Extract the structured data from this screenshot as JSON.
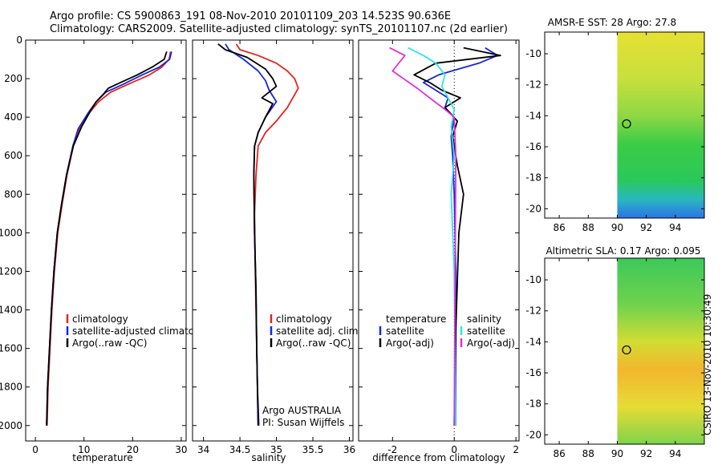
{
  "header": {
    "line1": "Argo profile: CS 5900863_191 08-Nov-2010 20101109_203 14.523S 90.636E",
    "line2": "Climatology: CARS2009. Satellite-adjusted climatology: synTS_20101107.nc (2d earlier)"
  },
  "credit": "CSIRO 13-Nov-2010 10:30:49",
  "colors": {
    "red": "#e8221d",
    "blue": "#1726e0",
    "black": "#000000",
    "cyan": "#2ee6e6",
    "magenta": "#e030d8"
  },
  "chart_data": [
    {
      "type": "line",
      "xlabel": "temperature",
      "ylabel": "",
      "xlim": [
        -2,
        31
      ],
      "ylim": [
        2080,
        0
      ],
      "xticks": [
        0,
        10,
        20,
        30
      ],
      "yticks": [
        0,
        200,
        400,
        600,
        800,
        1000,
        1200,
        1400,
        1600,
        1800,
        2000
      ],
      "legend": [
        "climatology",
        "satellite-adjusted climatology",
        "Argo(..raw -QC)"
      ],
      "series": [
        {
          "name": "climatology",
          "color": "red",
          "x": [
            27.8,
            27.5,
            26.0,
            23.5,
            19.0,
            15.5,
            13.0,
            11.0,
            9.0,
            7.8,
            6.5,
            5.5,
            4.6,
            3.9,
            3.4,
            3.0,
            2.6,
            2.4
          ],
          "y": [
            60,
            100,
            140,
            180,
            230,
            270,
            320,
            380,
            460,
            550,
            700,
            850,
            1000,
            1200,
            1400,
            1600,
            1800,
            2000
          ]
        },
        {
          "name": "satellite-adjusted climatology",
          "color": "blue",
          "x": [
            28.0,
            27.6,
            25.5,
            22.0,
            18.0,
            14.5,
            12.5,
            10.8,
            8.8,
            7.7,
            6.4,
            5.4,
            4.5,
            3.8,
            3.3,
            2.9,
            2.5,
            2.3
          ],
          "y": [
            60,
            100,
            140,
            180,
            230,
            270,
            320,
            380,
            460,
            550,
            700,
            850,
            1000,
            1200,
            1400,
            1600,
            1800,
            2000
          ]
        },
        {
          "name": "Argo(..raw -QC)",
          "color": "black",
          "x": [
            27.0,
            26.5,
            24.0,
            21.0,
            17.5,
            15.0,
            14.0,
            12.5,
            11.5,
            9.5,
            7.8,
            6.4,
            5.4,
            4.5,
            3.8,
            3.3,
            2.9,
            2.5,
            2.3
          ],
          "y": [
            60,
            100,
            140,
            180,
            220,
            250,
            280,
            320,
            360,
            450,
            550,
            700,
            850,
            1000,
            1200,
            1400,
            1600,
            1800,
            2000
          ]
        }
      ],
      "annotations": []
    },
    {
      "type": "line",
      "xlabel": "salinity",
      "ylabel": "",
      "xlim": [
        33.85,
        36.05
      ],
      "ylim": [
        2080,
        0
      ],
      "xticks": [
        34,
        34.5,
        35,
        35.5,
        36
      ],
      "yticks": [],
      "legend": [
        "climatology",
        "satellite adj. clim.",
        "Argo(..raw -QC)"
      ],
      "series": [
        {
          "name": "climatology",
          "color": "red",
          "x": [
            34.45,
            34.5,
            34.75,
            35.0,
            35.15,
            35.25,
            35.3,
            35.15,
            35.0,
            34.85,
            34.75,
            34.72,
            34.7,
            34.71,
            34.72,
            34.73,
            34.74,
            34.75
          ],
          "y": [
            20,
            50,
            80,
            120,
            160,
            200,
            250,
            350,
            420,
            480,
            550,
            700,
            900,
            1200,
            1400,
            1600,
            1800,
            2000
          ]
        },
        {
          "name": "satellite adj. clim.",
          "color": "blue",
          "x": [
            34.3,
            34.35,
            34.55,
            34.75,
            34.85,
            34.9,
            35.0,
            34.85,
            34.75,
            34.7,
            34.69,
            34.7,
            34.72,
            34.73,
            34.74,
            34.76
          ],
          "y": [
            20,
            50,
            100,
            160,
            210,
            260,
            320,
            400,
            480,
            550,
            700,
            1000,
            1300,
            1600,
            1800,
            2000
          ]
        },
        {
          "name": "Argo(..raw -QC)",
          "color": "black",
          "x": [
            34.2,
            34.3,
            34.6,
            34.85,
            34.95,
            35.0,
            34.8,
            34.95,
            34.85,
            34.75,
            34.7,
            34.69,
            34.7,
            34.72,
            34.73,
            34.75
          ],
          "y": [
            20,
            50,
            90,
            150,
            200,
            240,
            300,
            330,
            400,
            480,
            550,
            700,
            1000,
            1300,
            1600,
            2000
          ]
        }
      ],
      "annotations": [
        "Argo AUSTRALIA",
        "PI: Susan Wijffels"
      ]
    },
    {
      "type": "line",
      "xlabel": "difference from climatology",
      "ylabel": "",
      "xlim": [
        -3.1,
        2.1
      ],
      "ylim": [
        2080,
        0
      ],
      "xticks": [
        -2,
        0,
        2
      ],
      "yticks": [],
      "legend_title_left": "temperature",
      "legend_title_right": "salinity",
      "legend": [
        "satellite",
        "Argo(-adj)",
        "satellite",
        "Argo(-adj)"
      ],
      "series": [
        {
          "name": "temperature satellite",
          "color": "blue",
          "x": [
            1.0,
            1.4,
            0.8,
            -0.5,
            -1.0,
            -0.6,
            -0.2,
            -0.3,
            0.0,
            -0.1,
            -0.05,
            0.0,
            0.05,
            0.05,
            0.05
          ],
          "y": [
            40,
            80,
            120,
            180,
            220,
            260,
            300,
            350,
            400,
            500,
            600,
            800,
            1200,
            1600,
            2000
          ]
        },
        {
          "name": "temperature Argo(-adj)",
          "color": "black",
          "x": [
            0.3,
            1.5,
            -0.6,
            -1.3,
            -0.8,
            -0.4,
            0.2,
            -0.3,
            0.1,
            -0.05,
            0.1,
            0.3,
            0.15,
            0.05,
            0.0
          ],
          "y": [
            40,
            80,
            120,
            180,
            220,
            260,
            300,
            350,
            420,
            500,
            650,
            800,
            1000,
            1500,
            2000
          ]
        },
        {
          "name": "salinity satellite",
          "color": "cyan",
          "x": [
            -1.5,
            -1.0,
            -0.6,
            -0.3,
            -0.4,
            -0.2,
            0.0,
            -0.1,
            0.0,
            -0.1,
            0.0,
            0.05
          ],
          "y": [
            40,
            80,
            120,
            180,
            240,
            300,
            360,
            450,
            600,
            800,
            1200,
            2000
          ]
        },
        {
          "name": "salinity Argo(-adj)",
          "color": "magenta",
          "x": [
            -2.1,
            -1.6,
            -2.0,
            -1.2,
            -0.8,
            -0.3,
            0.0,
            0.05,
            0.0
          ],
          "y": [
            40,
            80,
            160,
            250,
            300,
            360,
            400,
            600,
            2000
          ]
        }
      ],
      "annotations": []
    },
    {
      "type": "heatmap",
      "title": "AMSR-E SST: 28 Argo: 27.8",
      "xlim": [
        85,
        96
      ],
      "ylim": [
        -20.6,
        -8.6
      ],
      "xticks": [
        86,
        88,
        90,
        92,
        94
      ],
      "yticks": [
        -10,
        -12,
        -14,
        -16,
        -18,
        -20
      ],
      "no_data_west_of": 90,
      "argo_position": [
        90.64,
        -14.52
      ]
    },
    {
      "type": "heatmap",
      "title": "Altimetric SLA: 0.17 Argo: 0.095",
      "xlim": [
        85,
        96
      ],
      "ylim": [
        -20.6,
        -8.6
      ],
      "xticks": [
        86,
        88,
        90,
        92,
        94
      ],
      "yticks": [
        -10,
        -12,
        -14,
        -16,
        -18,
        -20
      ],
      "no_data_west_of": 90,
      "argo_position": [
        90.64,
        -14.52
      ]
    }
  ]
}
